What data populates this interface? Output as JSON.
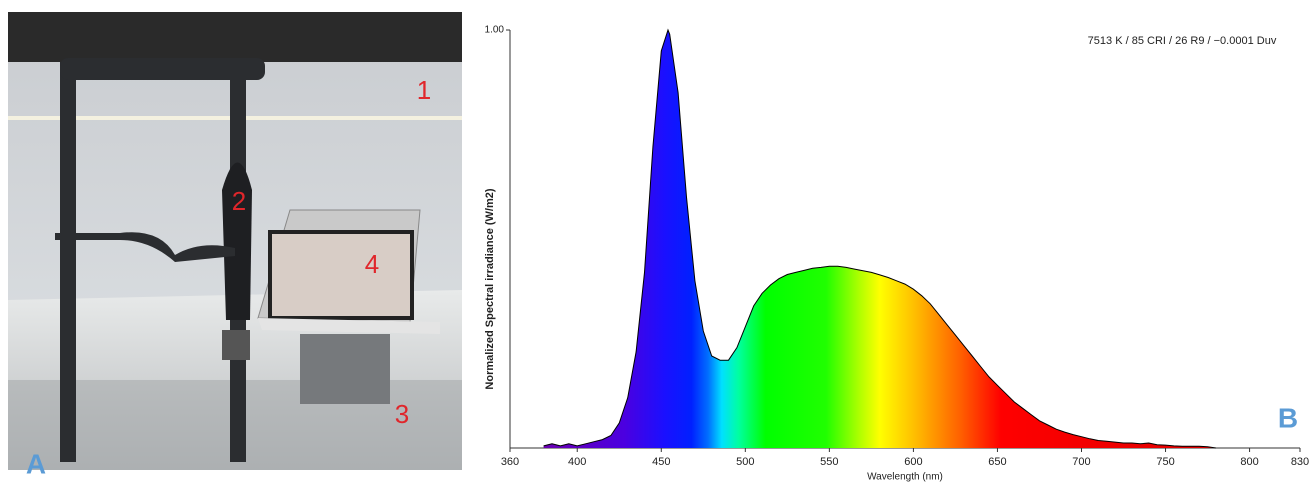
{
  "photo": {
    "panel_label": "A",
    "markers": [
      "1",
      "2",
      "3",
      "4"
    ]
  },
  "chart_data": {
    "type": "area",
    "panel_label": "B",
    "annotation": "7513 K / 85 CRI / 26 R9 / −0.0001 Duv",
    "x_label": "Wavelength (nm)",
    "y_label": "Normalized Spectral irradiance (W/m2)",
    "xlim": [
      360,
      830
    ],
    "ylim": [
      0,
      1
    ],
    "xticks": [
      360,
      400,
      450,
      500,
      550,
      600,
      650,
      700,
      750,
      800,
      830
    ],
    "yticks": [
      {
        "value": 1,
        "label": "1.00"
      }
    ],
    "series": [
      {
        "color": "#000000",
        "x": [
          380,
          385,
          390,
          395,
          400,
          405,
          410,
          415,
          420,
          425,
          430,
          435,
          440,
          445,
          450,
          454,
          455,
          460,
          465,
          470,
          475,
          480,
          485,
          490,
          495,
          500,
          505,
          510,
          515,
          520,
          525,
          530,
          535,
          540,
          545,
          550,
          555,
          560,
          565,
          570,
          575,
          580,
          585,
          590,
          595,
          600,
          605,
          610,
          615,
          620,
          625,
          630,
          635,
          640,
          645,
          650,
          655,
          660,
          665,
          670,
          675,
          680,
          685,
          690,
          695,
          700,
          705,
          710,
          715,
          720,
          725,
          730,
          735,
          740,
          745,
          750,
          755,
          760,
          765,
          770,
          775,
          780
        ],
        "values": [
          0.005,
          0.01,
          0.005,
          0.01,
          0.005,
          0.01,
          0.015,
          0.02,
          0.03,
          0.06,
          0.12,
          0.23,
          0.42,
          0.72,
          0.95,
          1.0,
          0.99,
          0.85,
          0.6,
          0.4,
          0.28,
          0.22,
          0.21,
          0.21,
          0.24,
          0.29,
          0.34,
          0.37,
          0.39,
          0.405,
          0.415,
          0.42,
          0.425,
          0.43,
          0.432,
          0.435,
          0.435,
          0.432,
          0.428,
          0.424,
          0.42,
          0.414,
          0.408,
          0.4,
          0.392,
          0.38,
          0.364,
          0.345,
          0.32,
          0.295,
          0.27,
          0.245,
          0.22,
          0.195,
          0.17,
          0.15,
          0.13,
          0.11,
          0.095,
          0.08,
          0.065,
          0.055,
          0.045,
          0.038,
          0.032,
          0.027,
          0.022,
          0.018,
          0.016,
          0.014,
          0.012,
          0.012,
          0.01,
          0.012,
          0.008,
          0.007,
          0.005,
          0.004,
          0.004,
          0.004,
          0.003,
          0
        ]
      }
    ]
  }
}
